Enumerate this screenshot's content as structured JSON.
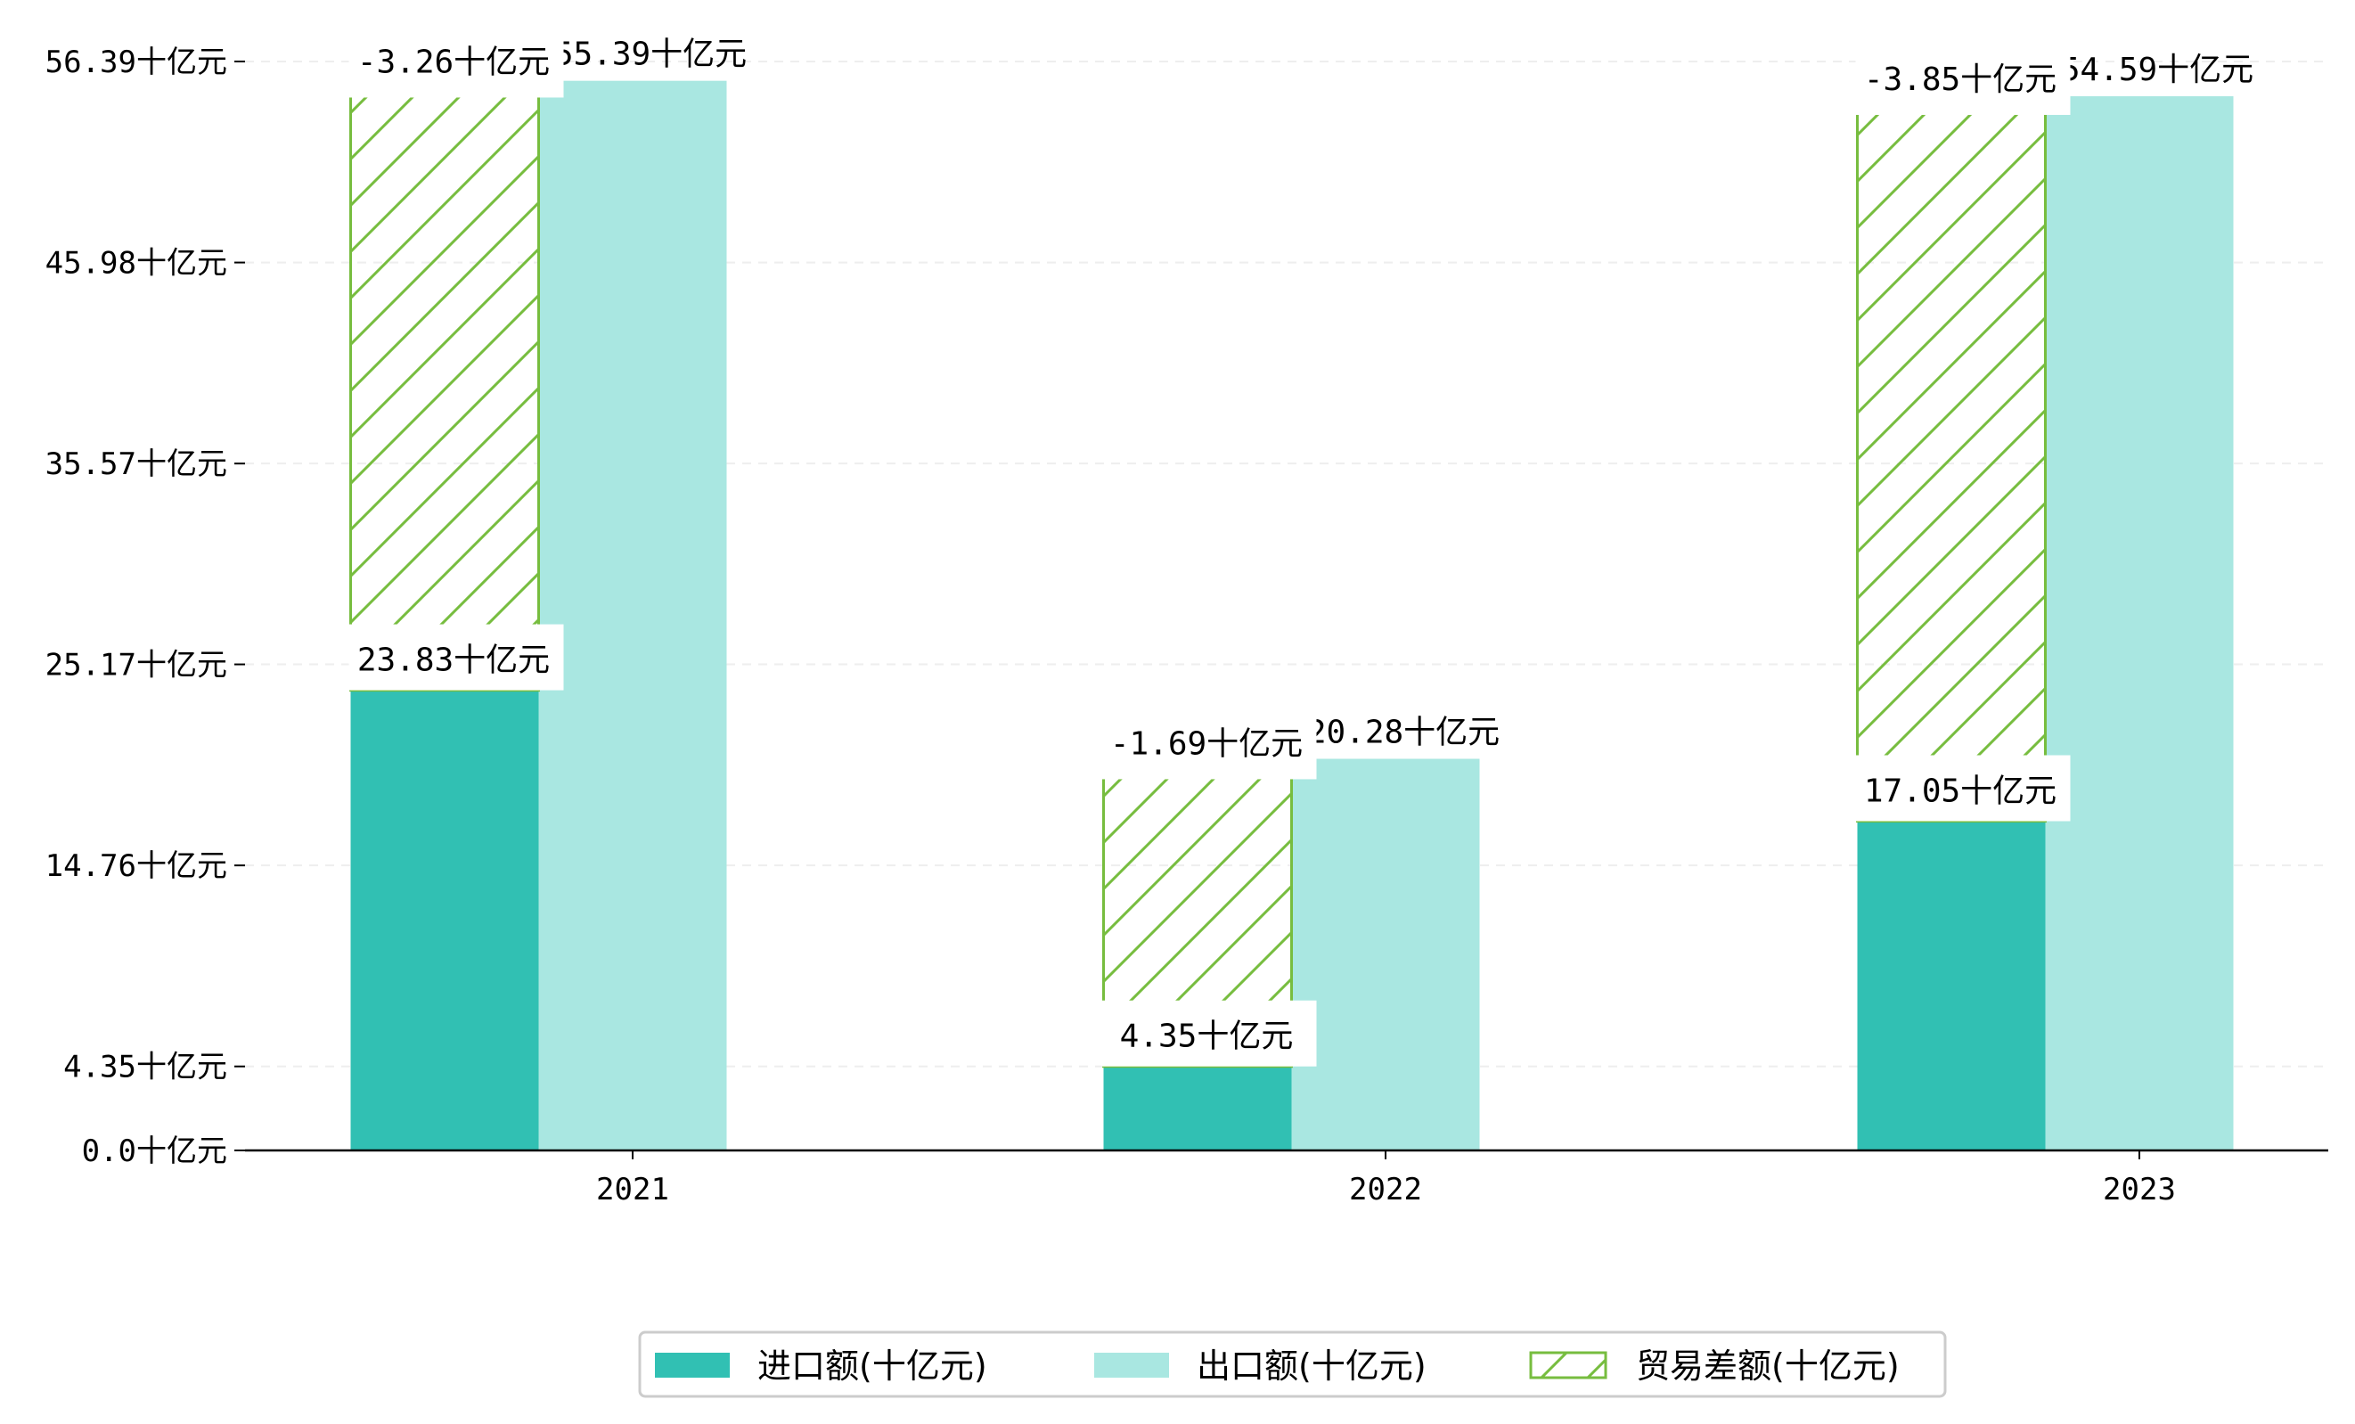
{
  "chart_data": {
    "type": "bar",
    "title": "",
    "xlabel": "",
    "ylabel": "",
    "categories": [
      "2021",
      "2022",
      "2023"
    ],
    "unit": "十亿元",
    "ylim": [
      0,
      56.39
    ],
    "yticks": [
      0.0,
      4.35,
      14.76,
      25.17,
      35.57,
      45.98,
      56.39
    ],
    "ytick_labels": [
      "0.0十亿元",
      "4.35十亿元",
      "14.76十亿元",
      "25.17十亿元",
      "35.57十亿元",
      "45.98十亿元",
      "56.39十亿元"
    ],
    "grid": "horizontal dashed",
    "legend_position": "bottom-center",
    "series": [
      {
        "name": "进口额(十亿元)",
        "color": "#31c0b3",
        "values": [
          23.83,
          4.35,
          17.05
        ],
        "labels": [
          "23.83十亿元",
          "4.35十亿元",
          "17.05十亿元"
        ]
      },
      {
        "name": "出口额(十亿元)",
        "color": "#a9e7e1",
        "values": [
          55.39,
          20.28,
          54.59
        ],
        "labels": [
          "55.39十亿元",
          "20.28十亿元",
          "54.59十亿元"
        ]
      },
      {
        "name": "贸易差额(十亿元)",
        "color": "#77bd3f",
        "values": [
          -3.26,
          -1.69,
          -3.85
        ],
        "labels": [
          "-3.26十亿元",
          "-1.69十亿元",
          "-3.85十亿元"
        ],
        "bar_top": [
          54.8,
          19.5,
          53.9
        ],
        "style": "hatched"
      }
    ]
  }
}
